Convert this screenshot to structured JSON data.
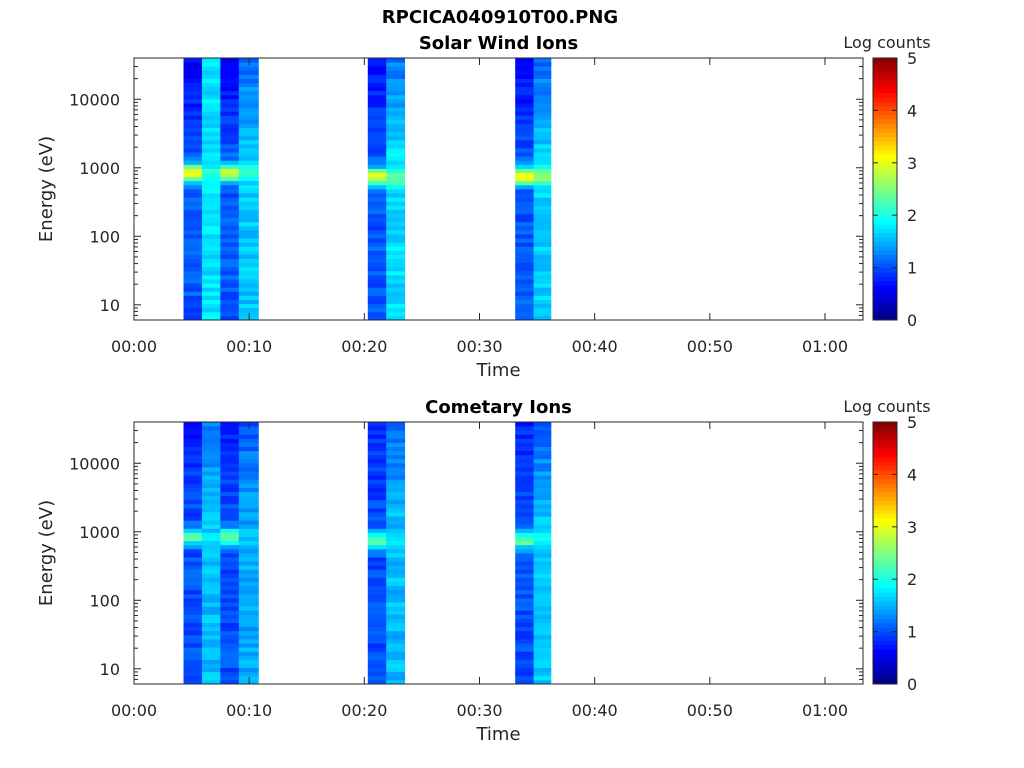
{
  "page": {
    "title": "RPCICA040910T00.PNG"
  },
  "chart_data": [
    {
      "type": "heatmap",
      "title": "Solar Wind Ions",
      "xlabel": "Time",
      "ylabel": "Energy (eV)",
      "colorbar_label": "Log counts",
      "x_tick_labels": [
        "00:00",
        "00:10",
        "00:20",
        "00:30",
        "00:40",
        "00:50",
        "01:00"
      ],
      "x_ticks_min": [
        0,
        10,
        20,
        30,
        40,
        50,
        60
      ],
      "xlim_min": [
        0,
        63.3
      ],
      "y_tick_labels": [
        "10",
        "100",
        "1000",
        "10000"
      ],
      "y_ticks": [
        10,
        100,
        1000,
        10000
      ],
      "yscale": "log",
      "ylim": [
        6,
        40000
      ],
      "clim": [
        0,
        5
      ],
      "colorbar_ticks": [
        "0",
        "1",
        "2",
        "3",
        "4",
        "5"
      ],
      "colormap": "jet",
      "time_columns": [
        {
          "start_min": 4.3,
          "end_min": 5.9,
          "peak_energy": 850,
          "peak_log": 3.1,
          "bg_log": 1.05,
          "hi_log": 0.6
        },
        {
          "start_min": 5.9,
          "end_min": 7.5,
          "peak_energy": 850,
          "peak_log": 2.05,
          "bg_log": 1.75,
          "hi_log": 1.75
        },
        {
          "start_min": 7.5,
          "end_min": 9.1,
          "peak_energy": 850,
          "peak_log": 3.0,
          "bg_log": 1.05,
          "hi_log": 0.55
        },
        {
          "start_min": 9.1,
          "end_min": 10.8,
          "peak_energy": 850,
          "peak_log": 2.0,
          "bg_log": 1.6,
          "hi_log": 1.15
        },
        {
          "start_min": 20.3,
          "end_min": 21.9,
          "peak_energy": 750,
          "peak_log": 3.0,
          "bg_log": 1.05,
          "hi_log": 0.7
        },
        {
          "start_min": 21.9,
          "end_min": 23.5,
          "peak_energy": 750,
          "peak_log": 2.4,
          "bg_log": 1.7,
          "hi_log": 1.2
        },
        {
          "start_min": 33.1,
          "end_min": 34.7,
          "peak_energy": 750,
          "peak_log": 3.1,
          "bg_log": 1.05,
          "hi_log": 0.6
        },
        {
          "start_min": 34.7,
          "end_min": 36.2,
          "peak_energy": 750,
          "peak_log": 2.5,
          "bg_log": 1.65,
          "hi_log": 1.1
        }
      ]
    },
    {
      "type": "heatmap",
      "title": "Cometary Ions",
      "xlabel": "Time",
      "ylabel": "Energy (eV)",
      "colorbar_label": "Log counts",
      "x_tick_labels": [
        "00:00",
        "00:10",
        "00:20",
        "00:30",
        "00:40",
        "00:50",
        "01:00"
      ],
      "x_ticks_min": [
        0,
        10,
        20,
        30,
        40,
        50,
        60
      ],
      "xlim_min": [
        0,
        63.3
      ],
      "y_tick_labels": [
        "10",
        "100",
        "1000",
        "10000"
      ],
      "y_ticks": [
        10,
        100,
        1000,
        10000
      ],
      "yscale": "log",
      "ylim": [
        6,
        40000
      ],
      "clim": [
        0,
        5
      ],
      "colorbar_ticks": [
        "0",
        "1",
        "2",
        "3",
        "4",
        "5"
      ],
      "colormap": "jet",
      "time_columns": [
        {
          "start_min": 4.3,
          "end_min": 5.9,
          "peak_energy": 850,
          "peak_log": 2.3,
          "bg_log": 1.0,
          "hi_log": 0.75
        },
        {
          "start_min": 5.9,
          "end_min": 7.5,
          "peak_energy": 850,
          "peak_log": 1.7,
          "bg_log": 1.55,
          "hi_log": 1.2
        },
        {
          "start_min": 7.5,
          "end_min": 9.1,
          "peak_energy": 850,
          "peak_log": 2.3,
          "bg_log": 1.0,
          "hi_log": 0.75
        },
        {
          "start_min": 9.1,
          "end_min": 10.8,
          "peak_energy": 850,
          "peak_log": 1.6,
          "bg_log": 1.45,
          "hi_log": 1.05
        },
        {
          "start_min": 20.3,
          "end_min": 21.9,
          "peak_energy": 750,
          "peak_log": 2.35,
          "bg_log": 1.0,
          "hi_log": 0.8
        },
        {
          "start_min": 21.9,
          "end_min": 23.5,
          "peak_energy": 750,
          "peak_log": 1.8,
          "bg_log": 1.55,
          "hi_log": 1.1
        },
        {
          "start_min": 33.1,
          "end_min": 34.7,
          "peak_energy": 750,
          "peak_log": 2.3,
          "bg_log": 1.0,
          "hi_log": 0.8
        },
        {
          "start_min": 34.7,
          "end_min": 36.2,
          "peak_energy": 750,
          "peak_log": 1.85,
          "bg_log": 1.6,
          "hi_log": 1.05
        }
      ]
    }
  ]
}
